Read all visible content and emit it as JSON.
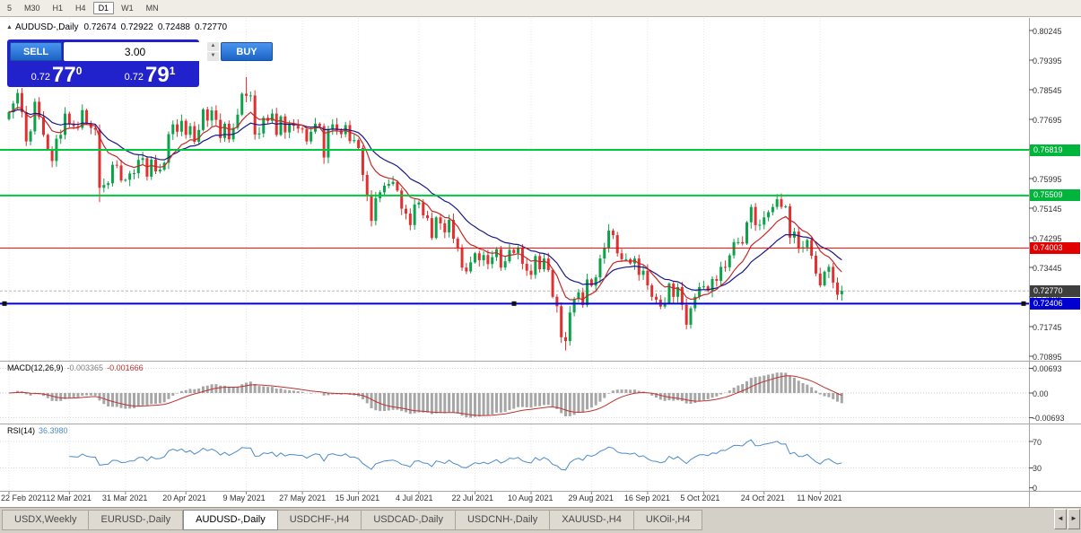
{
  "toolbar": {
    "timeframes": [
      {
        "label": "5",
        "active": false
      },
      {
        "label": "M30",
        "active": false
      },
      {
        "label": "H1",
        "active": false
      },
      {
        "label": "H4",
        "active": false
      },
      {
        "label": "D1",
        "active": true
      },
      {
        "label": "W1",
        "active": false
      },
      {
        "label": "MN",
        "active": false
      }
    ]
  },
  "chart_header": {
    "marker": "▲",
    "symbol_period": "AUDUSD-,Daily",
    "open": "0.72674",
    "high": "0.72922",
    "low": "0.72488",
    "close": "0.72770"
  },
  "trade_panel": {
    "sell_label": "SELL",
    "buy_label": "BUY",
    "lot_value": "3.00",
    "spin_up": "▲",
    "spin_down": "▼",
    "sell_price": {
      "prefix": "0.72",
      "big": "77",
      "sup": "0"
    },
    "buy_price": {
      "prefix": "0.72",
      "big": "79",
      "sup": "1"
    }
  },
  "price_axis": {
    "ticks": [
      "0.80245",
      "0.79395",
      "0.78545",
      "0.77695",
      "0.76845",
      "0.75995",
      "0.75145",
      "0.74295",
      "0.73445",
      "0.72595",
      "0.71745",
      "0.70895"
    ],
    "tags": [
      {
        "text": "0.76819",
        "price": 0.76819,
        "bg": "#00B43C"
      },
      {
        "text": "0.75509",
        "price": 0.75509,
        "bg": "#00B43C"
      },
      {
        "text": "0.74003",
        "price": 0.74003,
        "bg": "#E00000"
      },
      {
        "text": "0.72770",
        "price": 0.7277,
        "bg": "#3E3E3E"
      },
      {
        "text": "0.72406",
        "price": 0.72406,
        "bg": "#0000D2"
      }
    ]
  },
  "indicator_macd": {
    "name": "MACD(12,26,9)",
    "value": "-0.003365",
    "signal_value": "-0.001666",
    "axis": [
      "0.00693",
      "0.00",
      "-0.00693"
    ]
  },
  "indicator_rsi": {
    "name": "RSI(14)",
    "value": "36.3980",
    "axis": [
      "70",
      "30",
      "0"
    ],
    "levels": [
      70,
      30
    ]
  },
  "date_axis": [
    {
      "label": "22 Feb 2021",
      "i": 0
    },
    {
      "label": "12 Mar 2021",
      "i": 14
    },
    {
      "label": "31 Mar 2021",
      "i": 27
    },
    {
      "label": "20 Apr 2021",
      "i": 41
    },
    {
      "label": "9 May 2021",
      "i": 55
    },
    {
      "label": "27 May 2021",
      "i": 68
    },
    {
      "label": "15 Jun 2021",
      "i": 81
    },
    {
      "label": "4 Jul 2021",
      "i": 95
    },
    {
      "label": "22 Jul 2021",
      "i": 108
    },
    {
      "label": "10 Aug 2021",
      "i": 121
    },
    {
      "label": "29 Aug 2021",
      "i": 135
    },
    {
      "label": "16 Sep 2021",
      "i": 148
    },
    {
      "label": "5 Oct 2021",
      "i": 161
    },
    {
      "label": "24 Oct 2021",
      "i": 175
    },
    {
      "label": "11 Nov 2021",
      "i": 188
    }
  ],
  "tabs": [
    {
      "label": "USDX,Weekly",
      "active": false
    },
    {
      "label": "EURUSD-,Daily",
      "active": false
    },
    {
      "label": "AUDUSD-,Daily",
      "active": true
    },
    {
      "label": "USDCHF-,H4",
      "active": false
    },
    {
      "label": "USDCAD-,Daily",
      "active": false
    },
    {
      "label": "USDCNH-,Daily",
      "active": false
    },
    {
      "label": "XAUUSD-,H4",
      "active": false
    },
    {
      "label": "UKOil-,H4",
      "active": false
    }
  ],
  "tab_scroll": {
    "left": "◄",
    "right": "►"
  },
  "chart_data": {
    "type": "candlestick",
    "symbol": "AUDUSD-",
    "period": "Daily",
    "ylim": [
      0.70895,
      0.80245
    ],
    "up_color": "#0CA24A",
    "down_color": "#E03030",
    "ma_fast": {
      "period": 10,
      "color": "#C42828"
    },
    "ma_slow": {
      "period": 21,
      "color": "#18188C"
    },
    "levels": [
      {
        "price": 0.76819,
        "color": "#00C83E",
        "w": 2,
        "selected": false
      },
      {
        "price": 0.75509,
        "color": "#00C83E",
        "w": 2,
        "selected": false
      },
      {
        "price": 0.74003,
        "color": "#F00000",
        "w": 1,
        "selected": false
      },
      {
        "price": 0.72406,
        "color": "#0000E6",
        "w": 2,
        "selected": true
      }
    ],
    "bid": 0.7277,
    "macd_hist_color": "#A6A6A6",
    "macd_signal_color": "#C23030",
    "rsi_color": "#4C8BC8",
    "first_open": 0.777,
    "closes": [
      0.779,
      0.7815,
      0.7845,
      0.779,
      0.7706,
      0.7735,
      0.782,
      0.7776,
      0.7725,
      0.7684,
      0.765,
      0.7714,
      0.7725,
      0.7786,
      0.7757,
      0.775,
      0.7745,
      0.7796,
      0.7758,
      0.7745,
      0.774,
      0.7573,
      0.7581,
      0.7586,
      0.7639,
      0.7637,
      0.7594,
      0.7596,
      0.7614,
      0.7615,
      0.7653,
      0.7658,
      0.7605,
      0.7654,
      0.762,
      0.7625,
      0.7645,
      0.7727,
      0.7755,
      0.7734,
      0.7765,
      0.7725,
      0.775,
      0.7705,
      0.7739,
      0.7798,
      0.7766,
      0.7795,
      0.7768,
      0.7716,
      0.7757,
      0.7712,
      0.7745,
      0.7783,
      0.7843,
      0.7837,
      0.7838,
      0.7726,
      0.7729,
      0.7774,
      0.7765,
      0.7786,
      0.7725,
      0.7778,
      0.7732,
      0.7755,
      0.7751,
      0.7743,
      0.7741,
      0.7706,
      0.7734,
      0.7757,
      0.775,
      0.766,
      0.774,
      0.7755,
      0.7738,
      0.7727,
      0.7753,
      0.7707,
      0.771,
      0.7687,
      0.761,
      0.7551,
      0.7478,
      0.7543,
      0.756,
      0.7579,
      0.7584,
      0.759,
      0.7565,
      0.7513,
      0.7499,
      0.7466,
      0.7525,
      0.7531,
      0.7494,
      0.7486,
      0.7429,
      0.7488,
      0.7471,
      0.7445,
      0.7481,
      0.7427,
      0.7401,
      0.7344,
      0.7333,
      0.7359,
      0.7385,
      0.7365,
      0.738,
      0.7354,
      0.7374,
      0.7397,
      0.7344,
      0.7362,
      0.7395,
      0.7386,
      0.74,
      0.7355,
      0.7335,
      0.7323,
      0.7377,
      0.7339,
      0.737,
      0.7337,
      0.726,
      0.7233,
      0.7144,
      0.7133,
      0.7215,
      0.7254,
      0.7273,
      0.7236,
      0.731,
      0.7292,
      0.7316,
      0.737,
      0.74,
      0.745,
      0.7437,
      0.7385,
      0.7368,
      0.7368,
      0.7356,
      0.737,
      0.7323,
      0.7335,
      0.7293,
      0.726,
      0.7252,
      0.7232,
      0.7242,
      0.7298,
      0.726,
      0.7288,
      0.7237,
      0.718,
      0.7227,
      0.726,
      0.7288,
      0.729,
      0.7277,
      0.7311,
      0.7306,
      0.7346,
      0.7345,
      0.7379,
      0.7417,
      0.7417,
      0.7413,
      0.7474,
      0.7518,
      0.7466,
      0.7467,
      0.7488,
      0.7503,
      0.7518,
      0.754,
      0.7518,
      0.752,
      0.743,
      0.7447,
      0.74,
      0.7402,
      0.7423,
      0.7378,
      0.7327,
      0.7293,
      0.7332,
      0.7346,
      0.7301,
      0.7266,
      0.7277
    ],
    "overrides": {
      "21": {
        "l": 0.7532
      },
      "55": {
        "h": 0.7891
      },
      "84": {
        "l": 0.7462
      },
      "129": {
        "l": 0.7106
      },
      "178": {
        "h": 0.7555
      },
      "193": {
        "o": 0.72674,
        "h": 0.72922,
        "l": 0.72488,
        "c": 0.7277
      }
    }
  }
}
